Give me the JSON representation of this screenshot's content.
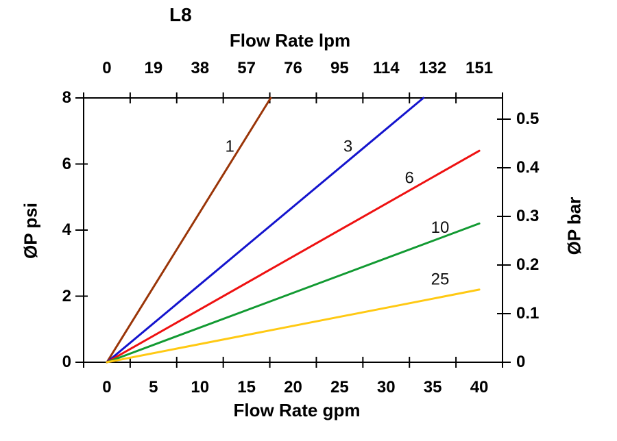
{
  "chart_data": {
    "type": "line",
    "title": "L8",
    "x_top": {
      "label": "Flow Rate lpm",
      "ticks": [
        "0",
        "19",
        "38",
        "57",
        "76",
        "95",
        "114",
        "132",
        "151"
      ]
    },
    "x_bottom": {
      "label": "Flow Rate gpm",
      "ticks": [
        "0",
        "5",
        "10",
        "15",
        "20",
        "25",
        "30",
        "35",
        "40"
      ],
      "range": [
        0,
        40
      ]
    },
    "y_left": {
      "label": "ØP psi",
      "ticks": [
        "0",
        "2",
        "4",
        "6",
        "8"
      ],
      "range": [
        0,
        8
      ]
    },
    "y_right": {
      "label": "ØP bar",
      "ticks": [
        "0",
        "0.1",
        "0.2",
        "0.3",
        "0.4",
        "0.5"
      ]
    },
    "grid": false,
    "legend": "labels-on-lines",
    "axis_color": "#000000",
    "series": [
      {
        "name": "1",
        "color": "#9A3508",
        "points_gpm_psi": [
          [
            0,
            0
          ],
          [
            17.6,
            8
          ]
        ],
        "label_at_gpm_psi": [
          13.2,
          6.5
        ]
      },
      {
        "name": "3",
        "color": "#1414CD",
        "points_gpm_psi": [
          [
            0,
            0
          ],
          [
            34.0,
            8
          ]
        ],
        "label_at_gpm_psi": [
          25.9,
          6.5
        ]
      },
      {
        "name": "6",
        "color": "#EE1111",
        "points_gpm_psi": [
          [
            0,
            0
          ],
          [
            40,
            6.4
          ]
        ],
        "label_at_gpm_psi": [
          32.5,
          5.55
        ]
      },
      {
        "name": "10",
        "color": "#129A32",
        "points_gpm_psi": [
          [
            0,
            0
          ],
          [
            40,
            4.2
          ]
        ],
        "label_at_gpm_psi": [
          35.8,
          4.05
        ]
      },
      {
        "name": "25",
        "color": "#FFC913",
        "points_gpm_psi": [
          [
            0,
            0
          ],
          [
            40,
            2.2
          ]
        ],
        "label_at_gpm_psi": [
          35.8,
          2.48
        ]
      }
    ]
  }
}
